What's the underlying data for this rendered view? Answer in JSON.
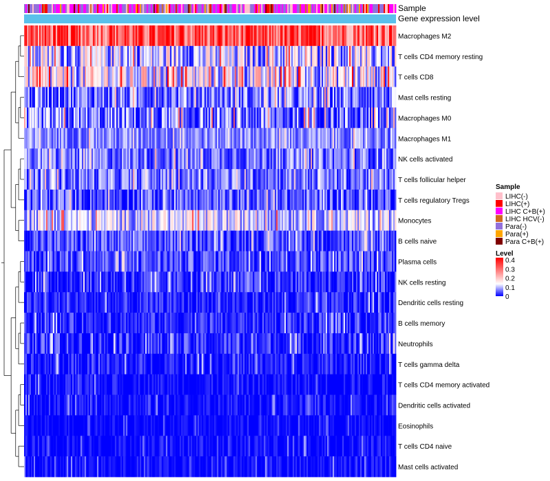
{
  "chart_data": {
    "type": "heatmap",
    "annotation_labels": [
      "Sample",
      "Gene expression level"
    ],
    "rows": [
      {
        "name": "Macrophages M2",
        "mean": 0.3,
        "spread": 0.12
      },
      {
        "name": "T cells CD4 memory resting",
        "mean": 0.1,
        "spread": 0.1
      },
      {
        "name": "T cells CD8",
        "mean": 0.13,
        "spread": 0.12
      },
      {
        "name": "Mast cells resting",
        "mean": 0.06,
        "spread": 0.07
      },
      {
        "name": "Macrophages M0",
        "mean": 0.05,
        "spread": 0.09
      },
      {
        "name": "Macrophages M1",
        "mean": 0.07,
        "spread": 0.05
      },
      {
        "name": "NK cells activated",
        "mean": 0.06,
        "spread": 0.06
      },
      {
        "name": "T cells follicular helper",
        "mean": 0.06,
        "spread": 0.06
      },
      {
        "name": "T cells regulatory  Tregs",
        "mean": 0.04,
        "spread": 0.06
      },
      {
        "name": "Monocytes",
        "mean": 0.11,
        "spread": 0.08
      },
      {
        "name": "B cells naive",
        "mean": 0.04,
        "spread": 0.05
      },
      {
        "name": "Plasma cells",
        "mean": 0.04,
        "spread": 0.05
      },
      {
        "name": "NK cells resting",
        "mean": 0.02,
        "spread": 0.05
      },
      {
        "name": "Dendritic cells resting",
        "mean": 0.015,
        "spread": 0.04
      },
      {
        "name": "B cells memory",
        "mean": 0.02,
        "spread": 0.04
      },
      {
        "name": "Neutrophils",
        "mean": 0.02,
        "spread": 0.05
      },
      {
        "name": "T cells gamma delta",
        "mean": 0.01,
        "spread": 0.04
      },
      {
        "name": "T cells CD4 memory activated",
        "mean": 0.005,
        "spread": 0.03
      },
      {
        "name": "Dendritic cells activated",
        "mean": 0.005,
        "spread": 0.03
      },
      {
        "name": "Eosinophils",
        "mean": 0.003,
        "spread": 0.02
      },
      {
        "name": "T cells CD4 naive",
        "mean": 0.003,
        "spread": 0.03
      },
      {
        "name": "Mast cells activated",
        "mean": 0.003,
        "spread": 0.03
      }
    ],
    "n_samples": 270,
    "sample_groups": [
      {
        "name": "LIHC(-)",
        "color": "#ffc0cb",
        "weight": 0.18
      },
      {
        "name": "LIHC(+)",
        "color": "#ff0000",
        "weight": 0.08
      },
      {
        "name": "LIHC C+B(+)",
        "color": "#ff00ff",
        "weight": 0.28
      },
      {
        "name": "LIHC HCV(-)",
        "color": "#d2691e",
        "weight": 0.06
      },
      {
        "name": "Para(-)",
        "color": "#9370db",
        "weight": 0.3
      },
      {
        "name": "Para(+)",
        "color": "#ffa500",
        "weight": 0.06
      },
      {
        "name": "Para C+B(+)",
        "color": "#800000",
        "weight": 0.04
      }
    ],
    "gene_expression_color": "#5bc0eb",
    "color_scale": {
      "min": 0,
      "max": 0.4,
      "low": "#0000ff",
      "mid": "#ffffff",
      "mid_value": 0.13,
      "high": "#ff0000"
    },
    "legend": {
      "sample_title": "Sample",
      "level_title": "Level",
      "level_ticks": [
        "0.4",
        "0.3",
        "0.2",
        "0.1",
        "0"
      ],
      "position": "right"
    }
  }
}
